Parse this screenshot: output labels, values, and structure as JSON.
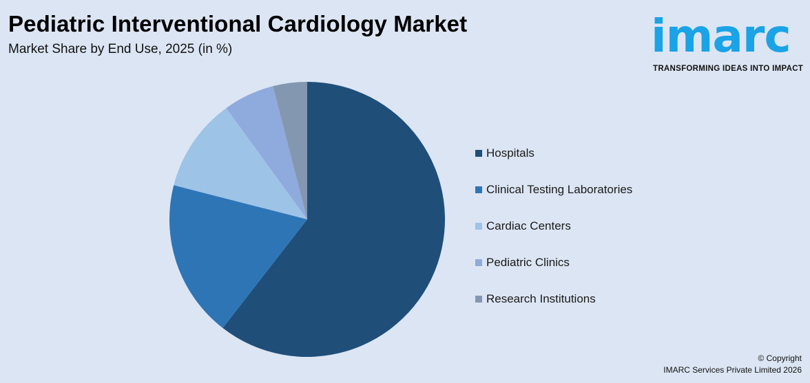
{
  "header": {
    "title": "Pediatric Interventional Cardiology Market",
    "subtitle": "Market Share by End Use, 2025 (in %)"
  },
  "logo": {
    "wordmark": "imarc",
    "tagline": "TRANSFORMING IDEAS INTO IMPACT"
  },
  "footer": {
    "copyright": "© Copyright",
    "company": "IMARC Services Private Limited 2026"
  },
  "colors": {
    "background": "#dce5f3",
    "hospitals": "#1f4e79",
    "clinical_testing_laboratories": "#2e75b6",
    "cardiac_centers": "#9dc3e6",
    "pediatric_clinics": "#8faadc",
    "research_institutions": "#8497b0"
  },
  "chart_data": {
    "type": "pie",
    "title": "Pediatric Interventional Cardiology Market",
    "subtitle": "Market Share by End Use, 2025 (in %)",
    "legend_position": "right",
    "categories": [
      "Hospitals",
      "Clinical Testing Laboratories",
      "Cardiac Centers",
      "Pediatric Clinics",
      "Research Institutions"
    ],
    "values": [
      60.5,
      18.5,
      11,
      6,
      4
    ],
    "colors": [
      "#1f4e79",
      "#2e75b6",
      "#9dc3e6",
      "#8faadc",
      "#8497b0"
    ],
    "start_angle_deg": 0,
    "direction": "clockwise"
  }
}
